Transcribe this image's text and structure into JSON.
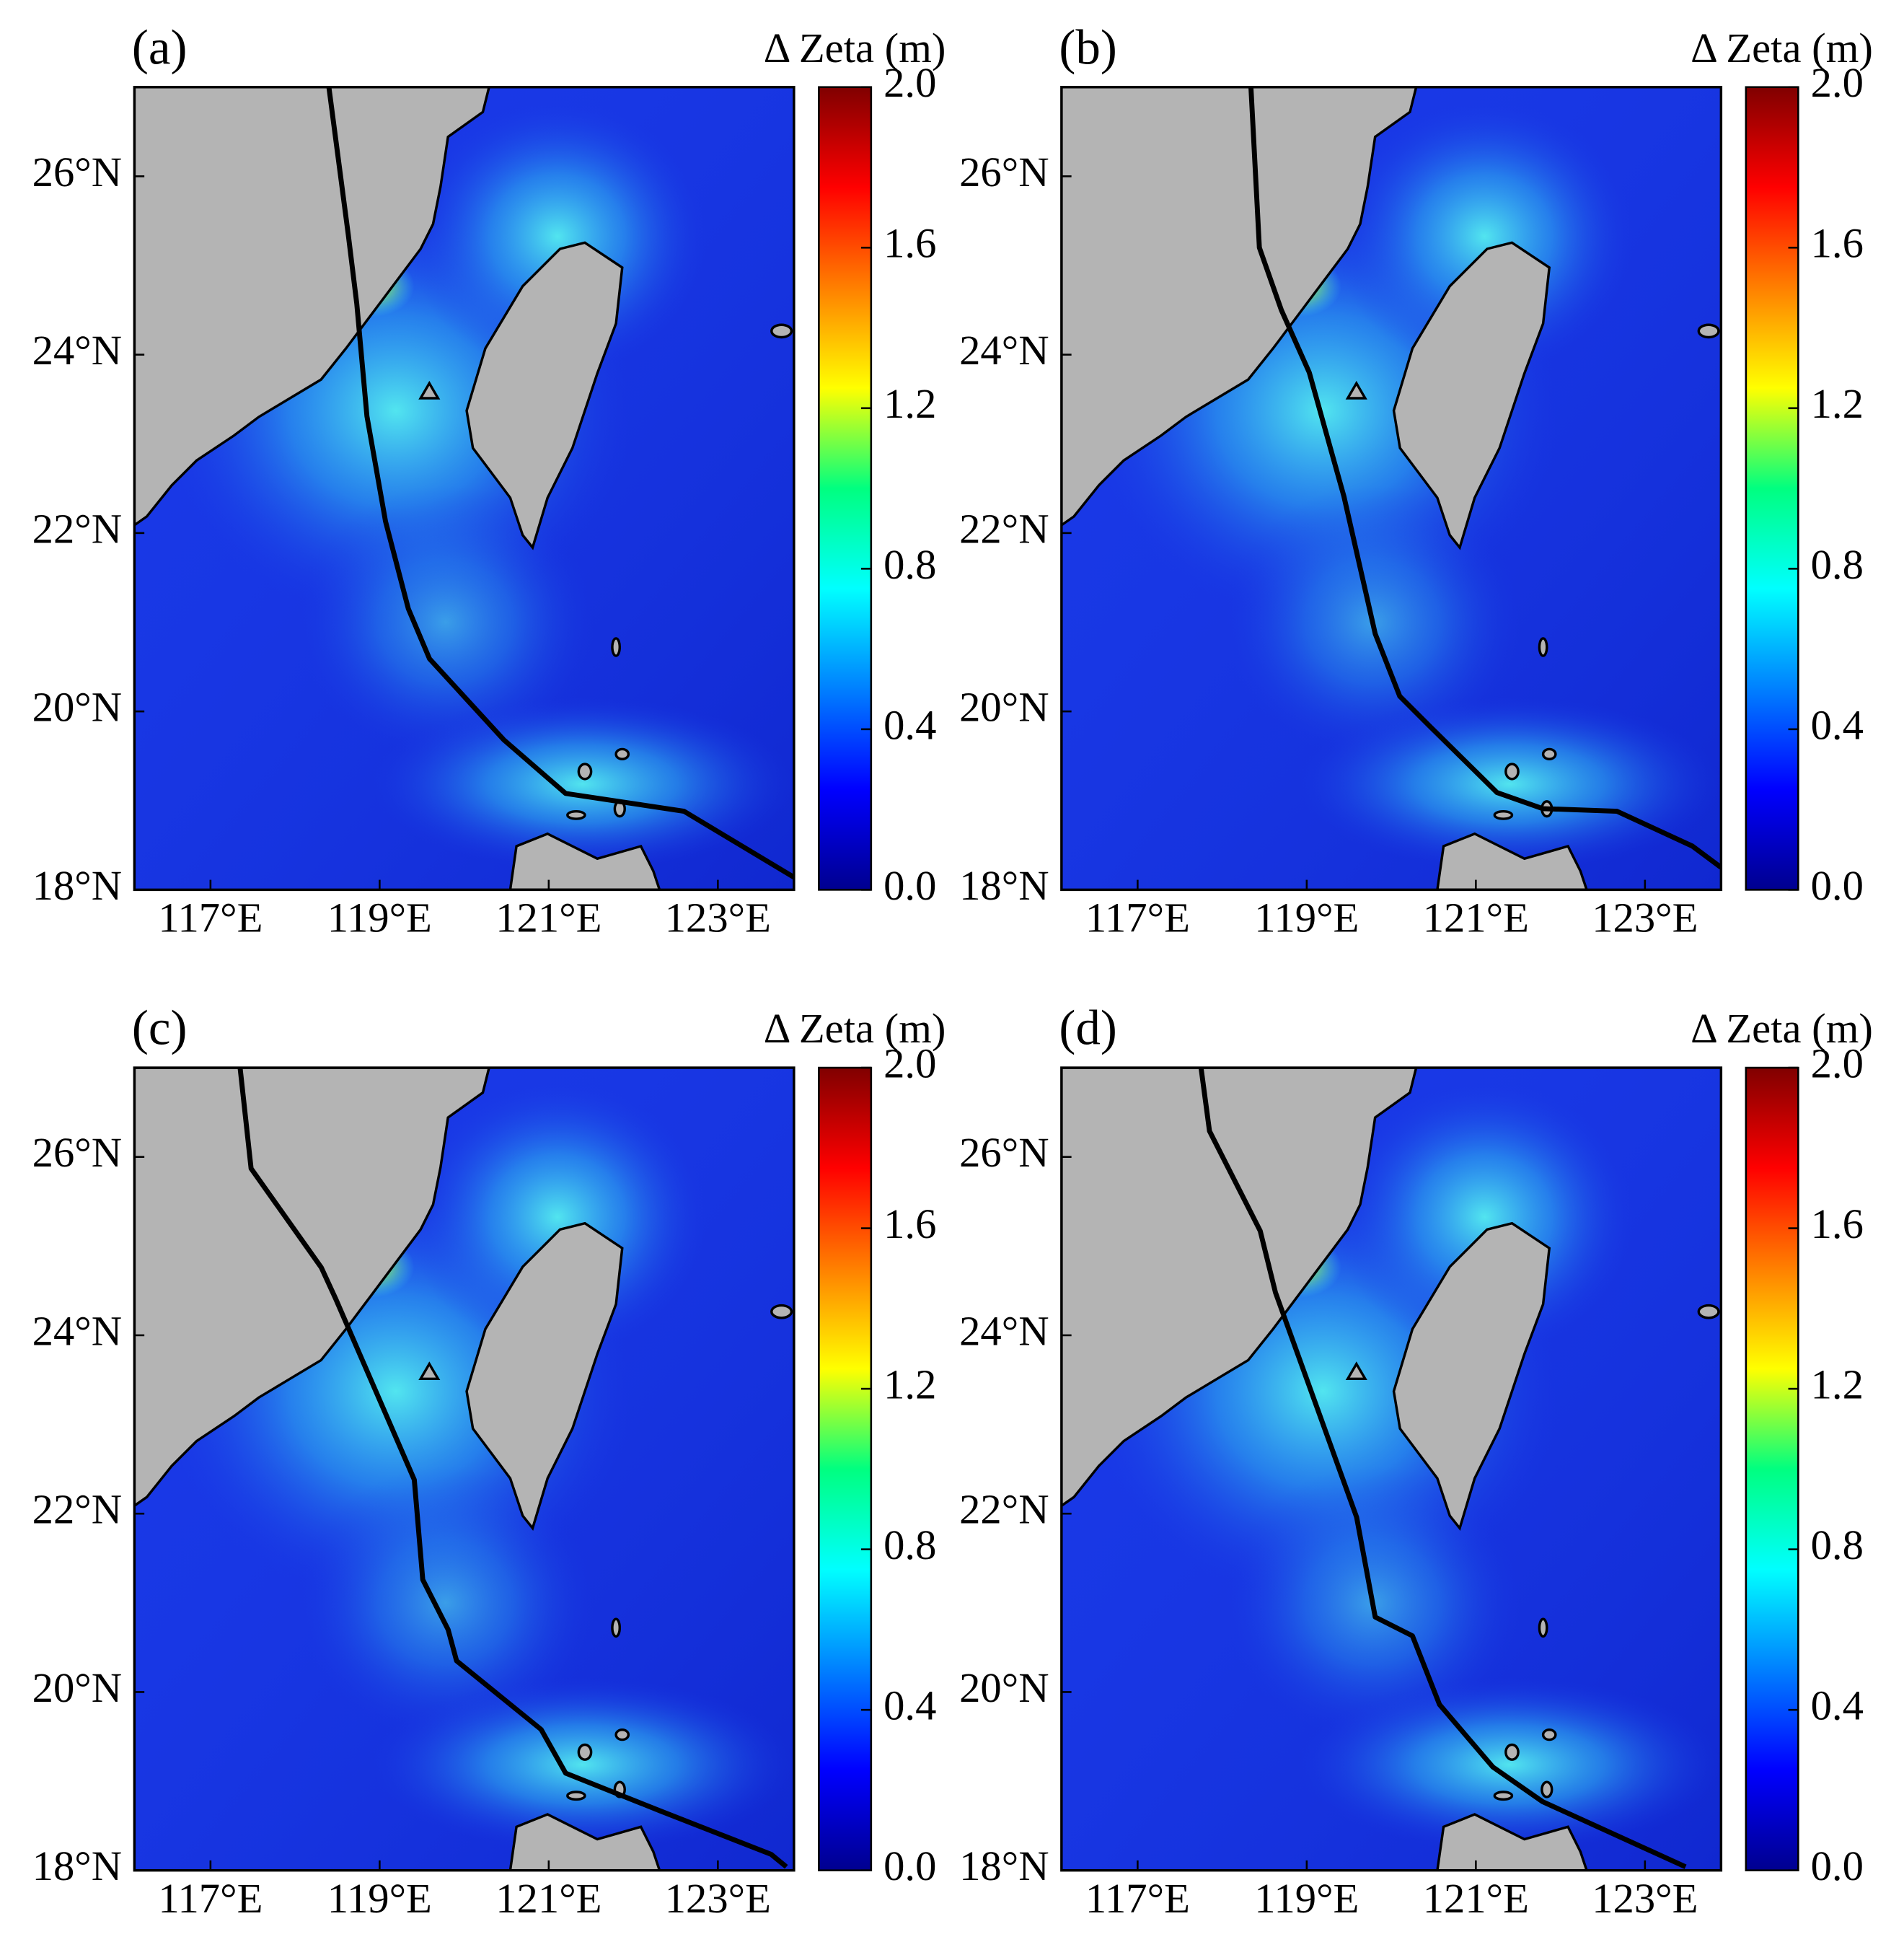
{
  "chart_data": [
    {
      "type": "map",
      "panel_label": "(a)",
      "colorbar_label": "Δ Zeta (m)",
      "xlim": [
        116.1,
        123.9
      ],
      "ylim": [
        18,
        27
      ],
      "xticks": [
        {
          "value": 117,
          "label": "117°E"
        },
        {
          "value": 119,
          "label": "119°E"
        },
        {
          "value": 121,
          "label": "121°E"
        },
        {
          "value": 123,
          "label": "123°E"
        }
      ],
      "yticks": [
        {
          "value": 18,
          "label": "18°N"
        },
        {
          "value": 20,
          "label": "20°N"
        },
        {
          "value": 22,
          "label": "22°N"
        },
        {
          "value": 24,
          "label": "24°N"
        },
        {
          "value": 26,
          "label": "26°N"
        }
      ],
      "colorbar": {
        "lim": [
          0,
          2
        ],
        "ticks": [
          {
            "value": 0,
            "label": "0.0"
          },
          0.4,
          0.8,
          1.2,
          1.6,
          {
            "value": 2,
            "label": "2.0"
          }
        ]
      },
      "track": {
        "color": "#000000",
        "x": [
          118.4,
          118.63,
          118.73,
          118.85,
          119.07,
          119.34,
          119.59,
          120.47,
          121.2,
          122.6,
          123.9
        ],
        "y": [
          27.0,
          25.34,
          24.57,
          23.31,
          22.13,
          21.15,
          20.59,
          19.68,
          19.08,
          18.88,
          18.14
        ]
      }
    },
    {
      "type": "map",
      "panel_label": "(b)",
      "colorbar_label": "Δ Zeta (m)",
      "xlim": [
        116.1,
        123.9
      ],
      "ylim": [
        18,
        27
      ],
      "xticks": [
        {
          "value": 117,
          "label": "117°E"
        },
        {
          "value": 119,
          "label": "119°E"
        },
        {
          "value": 121,
          "label": "121°E"
        },
        {
          "value": 123,
          "label": "123°E"
        }
      ],
      "yticks": [
        {
          "value": 18,
          "label": "18°N"
        },
        {
          "value": 20,
          "label": "20°N"
        },
        {
          "value": 22,
          "label": "22°N"
        },
        {
          "value": 24,
          "label": "24°N"
        },
        {
          "value": 26,
          "label": "26°N"
        }
      ],
      "colorbar": {
        "lim": [
          0,
          2
        ],
        "ticks": [
          {
            "value": 0,
            "label": "0.0"
          },
          0.4,
          0.8,
          1.2,
          1.6,
          {
            "value": 2,
            "label": "2.0"
          }
        ]
      },
      "track": {
        "color": "#000000",
        "x": [
          118.34,
          118.44,
          118.7,
          119.03,
          119.44,
          119.81,
          120.1,
          120.47,
          121.25,
          121.79,
          122.67,
          123.56,
          123.9
        ],
        "y": [
          27.0,
          25.2,
          24.5,
          23.8,
          22.41,
          20.87,
          20.17,
          19.82,
          19.09,
          18.91,
          18.88,
          18.49,
          18.25
        ]
      }
    },
    {
      "type": "map",
      "panel_label": "(c)",
      "colorbar_label": "Δ Zeta (m)",
      "xlim": [
        116.1,
        123.9
      ],
      "ylim": [
        18,
        27
      ],
      "xticks": [
        {
          "value": 117,
          "label": "117°E"
        },
        {
          "value": 119,
          "label": "119°E"
        },
        {
          "value": 121,
          "label": "121°E"
        },
        {
          "value": 123,
          "label": "123°E"
        }
      ],
      "yticks": [
        {
          "value": 18,
          "label": "18°N"
        },
        {
          "value": 20,
          "label": "20°N"
        },
        {
          "value": 22,
          "label": "22°N"
        },
        {
          "value": 24,
          "label": "24°N"
        },
        {
          "value": 26,
          "label": "26°N"
        }
      ],
      "colorbar": {
        "lim": [
          0,
          2
        ],
        "ticks": [
          {
            "value": 0,
            "label": "0.0"
          },
          0.4,
          0.8,
          1.2,
          1.6,
          {
            "value": 2,
            "label": "2.0"
          }
        ]
      },
      "track": {
        "color": "#000000",
        "x": [
          117.35,
          117.48,
          118.31,
          118.48,
          119.41,
          119.51,
          119.81,
          119.91,
          120.91,
          121.2,
          122.31,
          123.63,
          123.81
        ],
        "y": [
          27.0,
          25.87,
          24.76,
          24.41,
          22.38,
          21.26,
          20.7,
          20.35,
          19.58,
          19.09,
          18.67,
          18.18,
          18.04
        ]
      }
    },
    {
      "type": "map",
      "panel_label": "(d)",
      "colorbar_label": "Δ Zeta (m)",
      "xlim": [
        116.1,
        123.9
      ],
      "ylim": [
        18,
        27
      ],
      "xticks": [
        {
          "value": 117,
          "label": "117°E"
        },
        {
          "value": 119,
          "label": "119°E"
        },
        {
          "value": 121,
          "label": "121°E"
        },
        {
          "value": 123,
          "label": "123°E"
        }
      ],
      "yticks": [
        {
          "value": 18,
          "label": "18°N"
        },
        {
          "value": 20,
          "label": "20°N"
        },
        {
          "value": 22,
          "label": "22°N"
        },
        {
          "value": 24,
          "label": "24°N"
        },
        {
          "value": 26,
          "label": "26°N"
        }
      ],
      "colorbar": {
        "lim": [
          0,
          2
        ],
        "ticks": [
          {
            "value": 0,
            "label": "0.0"
          },
          0.4,
          0.8,
          1.2,
          1.6,
          {
            "value": 2,
            "label": "2.0"
          }
        ]
      },
      "track": {
        "color": "#000000",
        "x": [
          117.75,
          117.85,
          118.45,
          118.63,
          119.59,
          119.81,
          120.25,
          120.57,
          121.2,
          121.79,
          123.48
        ],
        "y": [
          27.0,
          26.29,
          25.17,
          24.48,
          21.96,
          20.84,
          20.63,
          19.86,
          19.16,
          18.77,
          18.04
        ]
      }
    }
  ]
}
